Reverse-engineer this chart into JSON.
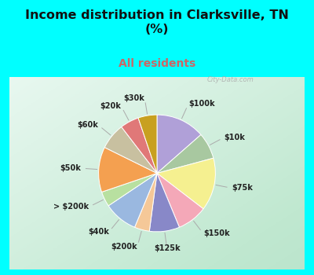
{
  "title": "Income distribution in Clarksville, TN\n(%)",
  "subtitle": "All residents",
  "title_color": "#111111",
  "subtitle_color": "#cc6666",
  "bg_cyan": "#00ffff",
  "watermark": "City-Data.com",
  "labels": [
    "$100k",
    "$10k",
    "$75k",
    "$150k",
    "$125k",
    "$200k",
    "$40k",
    "> $200k",
    "$50k",
    "$60k",
    "$20k",
    "$30k"
  ],
  "values": [
    13,
    7,
    14,
    8,
    8,
    4,
    9,
    4,
    12,
    7,
    5,
    5
  ],
  "colors": [
    "#b0a0d8",
    "#a8c8a0",
    "#f5f090",
    "#f4a8b8",
    "#8888c8",
    "#f5c898",
    "#9ab8e0",
    "#b8e0a0",
    "#f4a050",
    "#c8c0a0",
    "#e07878",
    "#c8a020"
  ],
  "label_fontsize": 7.0,
  "title_fontsize": 11.5,
  "subtitle_fontsize": 10.0,
  "figsize": [
    4.0,
    3.5
  ],
  "dpi": 100,
  "startangle": 90
}
